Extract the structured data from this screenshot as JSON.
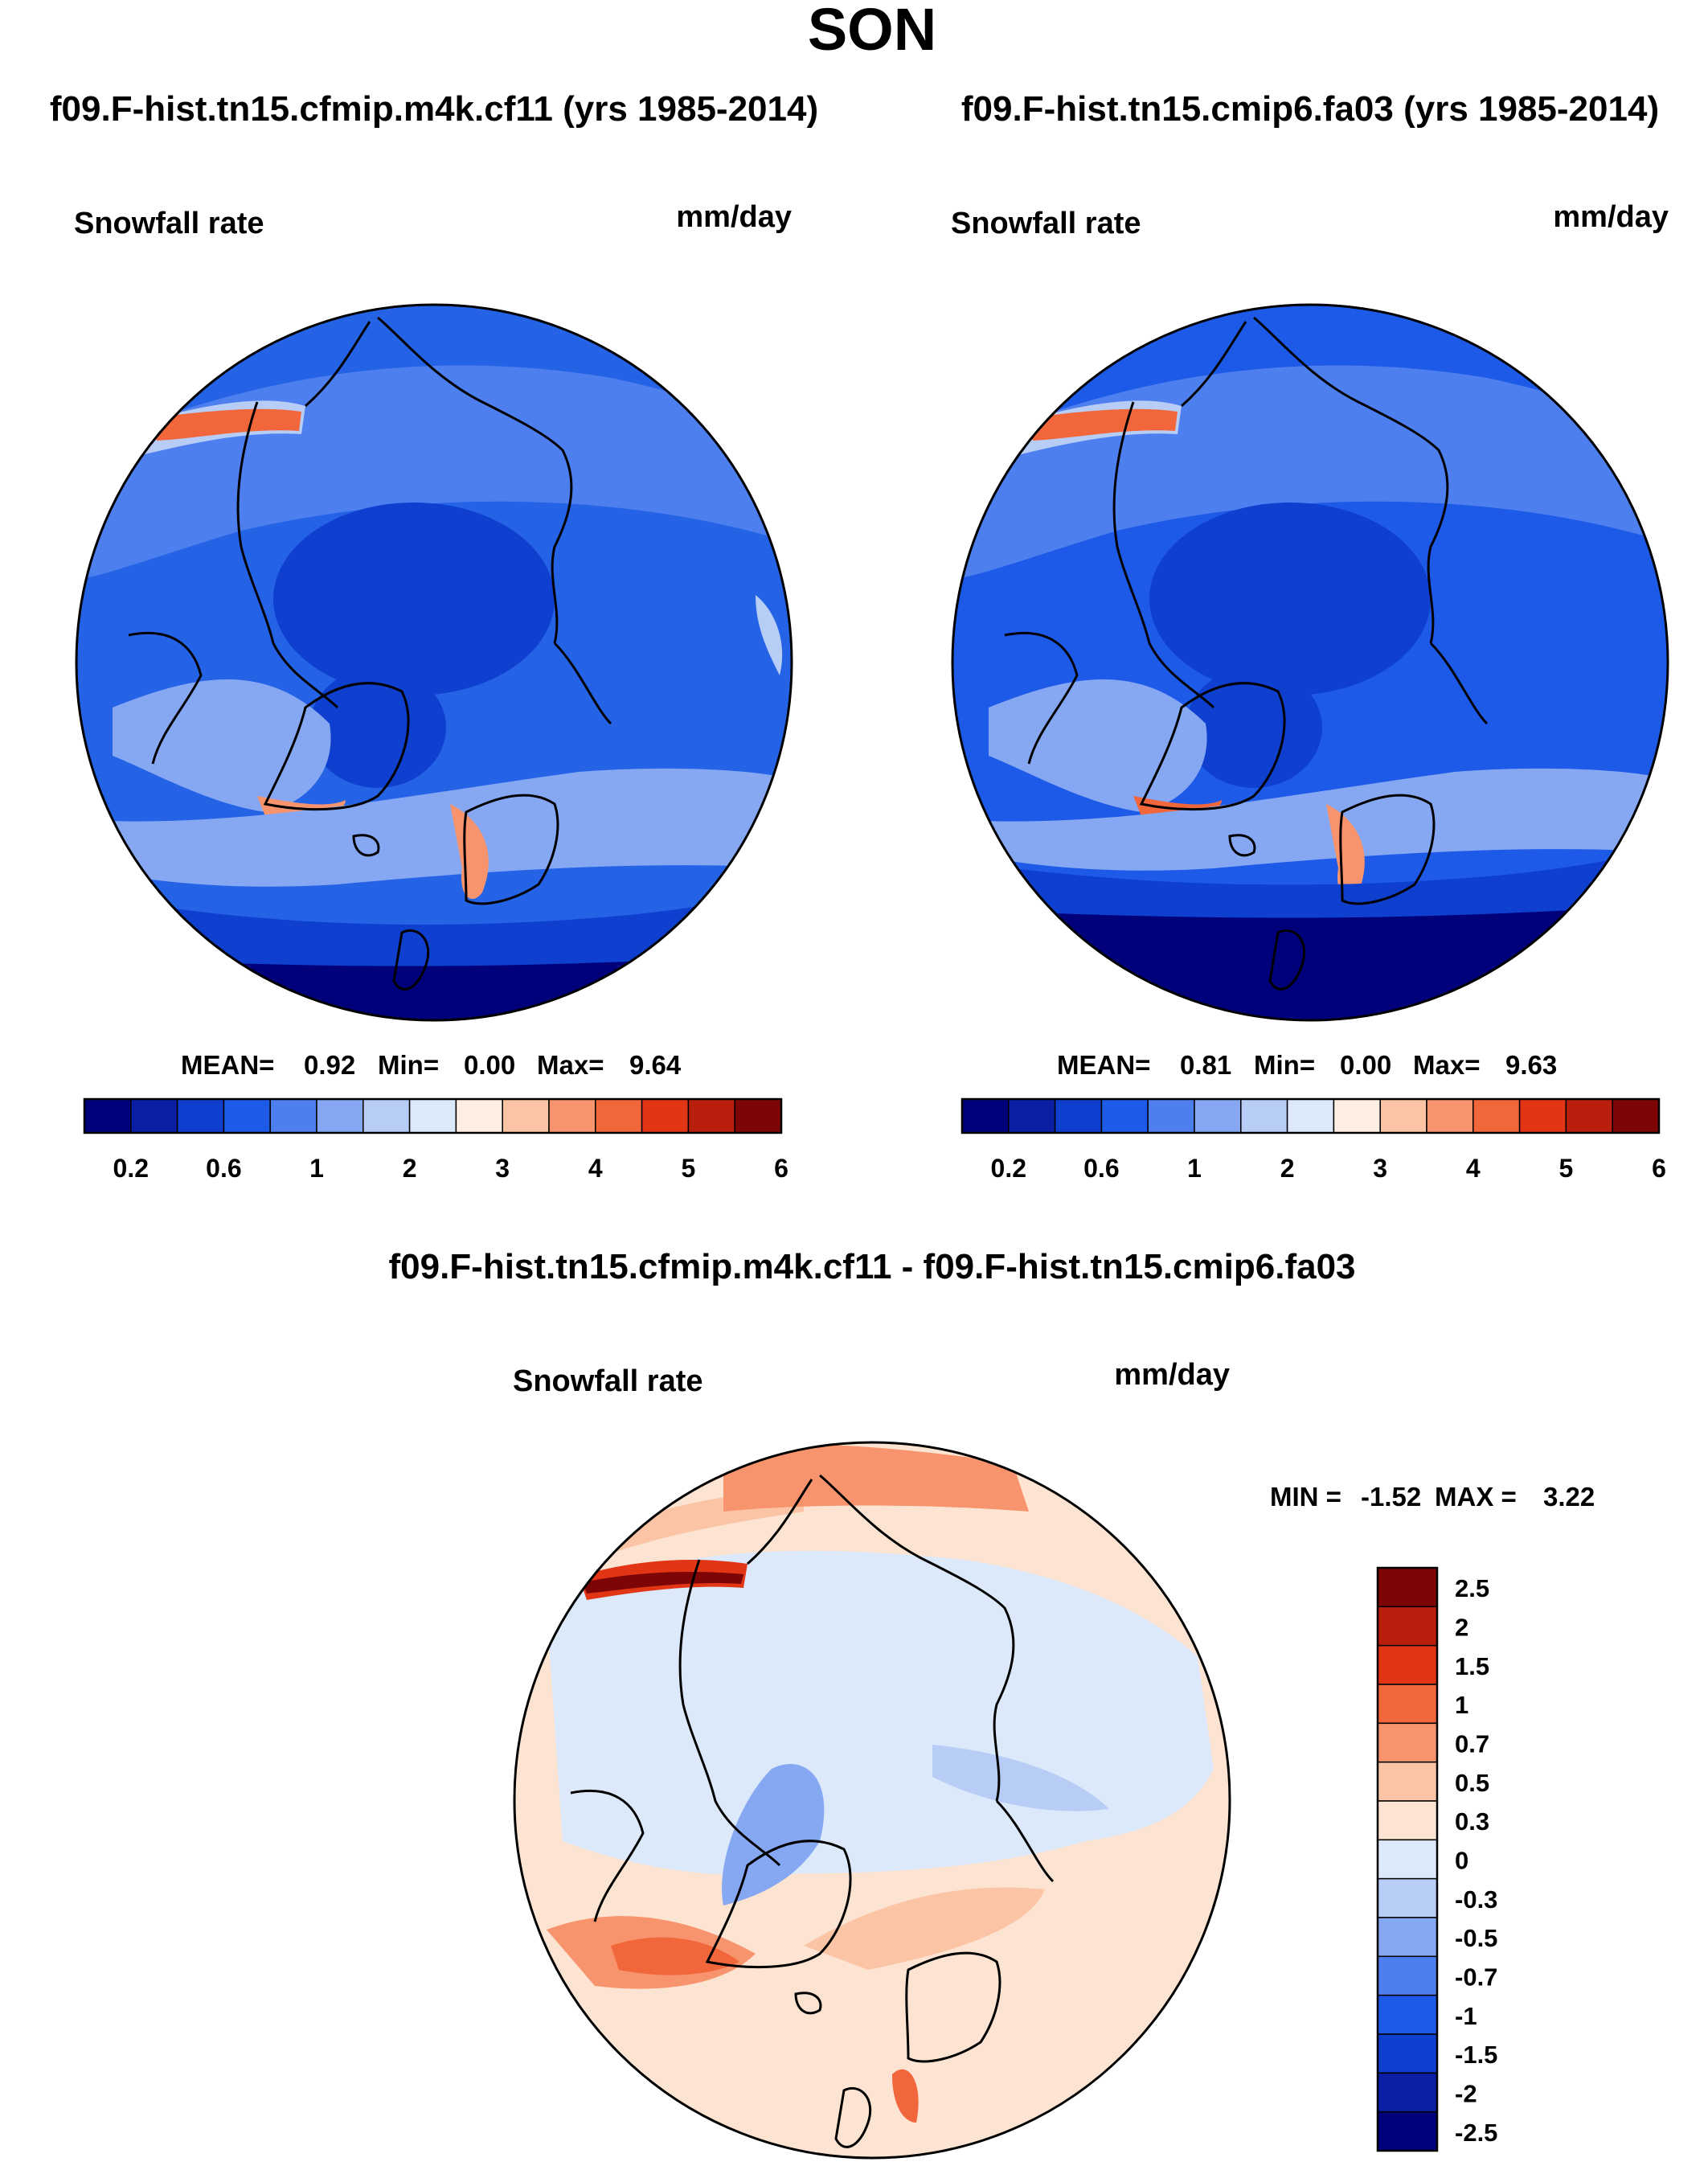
{
  "chart_data": {
    "type": "map",
    "season": "SON",
    "panels": [
      {
        "id": "p1",
        "title": "f09.F-hist.tn15.cfmip.m4k.cf11 (yrs 1985-2014)",
        "variable": "Snowfall rate",
        "units": "mm/day",
        "stats": {
          "mean_label": "MEAN=",
          "mean": "0.92",
          "min_label": "Min=",
          "min": "0.00",
          "max_label": "Max=",
          "max": "9.64"
        }
      },
      {
        "id": "p2",
        "title": "f09.F-hist.tn15.cmip6.fa03 (yrs 1985-2014)",
        "variable": "Snowfall rate",
        "units": "mm/day",
        "stats": {
          "mean_label": "MEAN=",
          "mean": "0.81",
          "min_label": "Min=",
          "min": "0.00",
          "max_label": "Max=",
          "max": "9.63"
        }
      },
      {
        "id": "diff",
        "title": "f09.F-hist.tn15.cfmip.m4k.cf11 - f09.F-hist.tn15.cmip6.fa03",
        "variable": "Snowfall rate",
        "units": "mm/day",
        "stats": {
          "min_label": "MIN =",
          "min": "-1.52",
          "max_label": "MAX =",
          "max": "3.22"
        }
      }
    ],
    "colorbar_main": {
      "colors": [
        "#00007a",
        "#0a1ea6",
        "#0f3fcf",
        "#1e5ae8",
        "#4d7fef",
        "#86a7f2",
        "#b7cdf6",
        "#dbe9fb",
        "#fdeee2",
        "#fbc4a4",
        "#f8946d",
        "#f2663b",
        "#e13515",
        "#b8200d",
        "#7d0505"
      ],
      "labels": [
        "0.2",
        "0.6",
        "1",
        "2",
        "3",
        "4",
        "5",
        "6"
      ]
    },
    "colorbar_diff": {
      "colors": [
        "#7d0505",
        "#b8200d",
        "#e13515",
        "#f2663b",
        "#f8946d",
        "#fbc4a4",
        "#fde4d2",
        "#dbe9fb",
        "#b7cdf6",
        "#86a7f2",
        "#4d7fef",
        "#1e5ae8",
        "#0f3fcf",
        "#0a1ea6",
        "#00007a"
      ],
      "labels": [
        "2.5",
        "2",
        "1.5",
        "1",
        "0.7",
        "0.5",
        "0.3",
        "0",
        "-0.3",
        "-0.5",
        "-0.7",
        "-1",
        "-1.5",
        "-2",
        "-2.5"
      ]
    }
  }
}
